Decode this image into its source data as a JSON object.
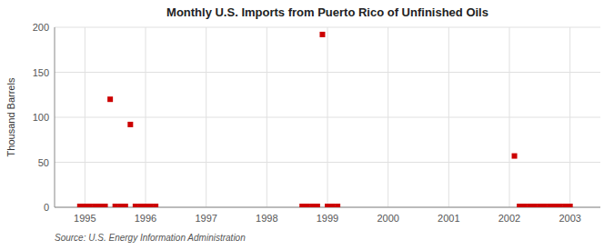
{
  "chart_data": {
    "type": "scatter",
    "title": "Monthly U.S. Imports from Puerto Rico of Unfinished Oils",
    "y_label": "Thousand Barrels",
    "source": "Source: U.S. Energy Information Administration",
    "color": "#cc0000",
    "marker": "square",
    "grid": true,
    "xlim": [
      1994.5,
      2003.5
    ],
    "xticks": [
      1995,
      1996,
      1997,
      1998,
      1999,
      2000,
      2001,
      2002,
      2003
    ],
    "ylim": [
      0,
      200
    ],
    "yticks": [
      0,
      50,
      100,
      150,
      200
    ],
    "x": [
      1994.917,
      1994.958,
      1995.0,
      1995.083,
      1995.167,
      1995.25,
      1995.333,
      1995.417,
      1995.5,
      1995.583,
      1995.667,
      1995.75,
      1995.833,
      1995.917,
      1996.0,
      1996.083,
      1996.167,
      1998.583,
      1998.667,
      1998.75,
      1998.833,
      1998.917,
      1999.0,
      1999.083,
      1999.167,
      2002.083,
      2002.167,
      2002.25,
      2002.333,
      2002.417,
      2002.5,
      2002.583,
      2002.667,
      2002.75,
      2002.833,
      2002.917,
      2003.0
    ],
    "values": [
      1,
      1,
      1,
      1,
      1,
      1,
      1,
      120,
      1,
      1,
      1,
      92,
      1,
      1,
      1,
      1,
      1,
      1,
      1,
      1,
      1,
      192,
      1,
      1,
      1,
      57,
      1,
      1,
      1,
      1,
      1,
      1,
      1,
      1,
      1,
      1,
      1
    ]
  }
}
